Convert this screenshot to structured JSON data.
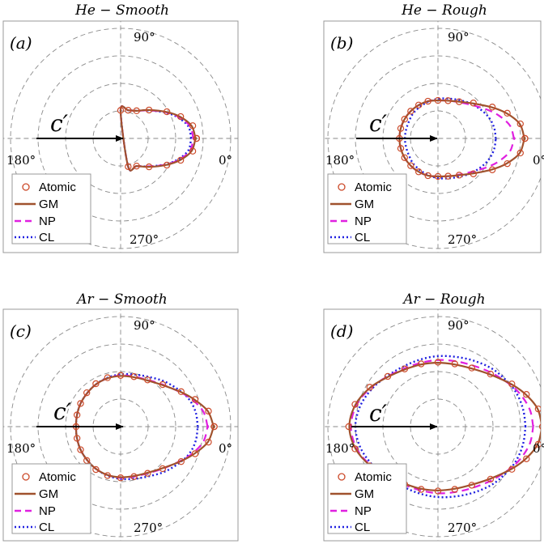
{
  "chart_data": [
    {
      "type": "polar-line",
      "title": "He − Smooth",
      "panel_label": "(a)",
      "vector_label": "c′",
      "angle_ticks": [
        "0°",
        "90°",
        "180°",
        "270°"
      ],
      "rings": [
        0.5,
        1.0,
        1.5,
        2.0
      ],
      "grid": true,
      "legend": {
        "position": "bottom-left",
        "entries": [
          "Atomic",
          "GM",
          "NP",
          "CL"
        ]
      },
      "theta_deg": [
        0,
        10,
        20,
        30,
        45,
        60,
        75,
        90
      ],
      "series": [
        {
          "name": "Atomic",
          "style": "circle-markers",
          "color": "#cc4a2a",
          "values": [
            1.38,
            1.33,
            1.16,
            0.97,
            0.73,
            0.58,
            0.53,
            0.51
          ]
        },
        {
          "name": "GM",
          "style": "solid",
          "color": "#a0522d",
          "values": [
            1.36,
            1.31,
            1.15,
            0.96,
            0.73,
            0.58,
            0.53,
            0.51
          ]
        },
        {
          "name": "NP",
          "style": "dashed",
          "color": "#e020e0",
          "values": [
            1.32,
            1.28,
            1.13,
            0.95,
            0.72,
            0.58,
            0.53,
            0.51
          ]
        },
        {
          "name": "CL",
          "style": "dotted",
          "color": "#1f1fe0",
          "values": [
            1.28,
            1.25,
            1.11,
            0.94,
            0.72,
            0.58,
            0.53,
            0.51
          ]
        }
      ]
    },
    {
      "type": "polar-line",
      "title": "He − Rough",
      "panel_label": "(b)",
      "vector_label": "c′",
      "angle_ticks": [
        "0°",
        "90°",
        "180°",
        "270°"
      ],
      "rings": [
        0.5,
        1.0,
        1.5,
        2.0
      ],
      "grid": true,
      "legend": {
        "position": "bottom-left",
        "entries": [
          "Atomic",
          "GM",
          "NP",
          "CL"
        ]
      },
      "theta_deg": [
        0,
        10,
        20,
        30,
        45,
        60,
        75,
        90,
        105,
        120,
        135,
        150,
        165,
        180
      ],
      "series": [
        {
          "name": "Atomic",
          "style": "circle-markers",
          "color": "#cc4a2a",
          "values": [
            1.58,
            1.52,
            1.34,
            1.14,
            0.91,
            0.77,
            0.71,
            0.69,
            0.7,
            0.7,
            0.7,
            0.7,
            0.7,
            0.7
          ]
        },
        {
          "name": "GM",
          "style": "solid",
          "color": "#a0522d",
          "values": [
            1.57,
            1.51,
            1.33,
            1.13,
            0.9,
            0.77,
            0.71,
            0.69,
            0.7,
            0.7,
            0.7,
            0.7,
            0.7,
            0.7
          ]
        },
        {
          "name": "NP",
          "style": "dashed",
          "color": "#e020e0",
          "values": [
            1.38,
            1.33,
            1.19,
            1.04,
            0.86,
            0.76,
            0.71,
            0.69,
            0.7,
            0.7,
            0.7,
            0.7,
            0.7,
            0.7
          ]
        },
        {
          "name": "CL",
          "style": "dotted",
          "color": "#1f1fe0",
          "values": [
            1.05,
            1.04,
            1.01,
            0.96,
            0.88,
            0.8,
            0.75,
            0.72,
            0.69,
            0.66,
            0.64,
            0.61,
            0.6,
            0.6
          ]
        }
      ]
    },
    {
      "type": "polar-line",
      "title": "Ar − Smooth",
      "panel_label": "(c)",
      "vector_label": "c′",
      "angle_ticks": [
        "0°",
        "90°",
        "180°",
        "270°"
      ],
      "rings": [
        0.5,
        1.0,
        1.5,
        2.0
      ],
      "grid": true,
      "legend": {
        "position": "bottom-left",
        "entries": [
          "Atomic",
          "GM",
          "NP",
          "CL"
        ]
      },
      "theta_deg": [
        0,
        10,
        20,
        30,
        45,
        60,
        75,
        90,
        105,
        120,
        135,
        150,
        165,
        180
      ],
      "series": [
        {
          "name": "Atomic",
          "style": "circle-markers",
          "color": "#cc4a2a",
          "values": [
            1.7,
            1.62,
            1.44,
            1.27,
            1.08,
            0.98,
            0.94,
            0.93,
            0.92,
            0.9,
            0.87,
            0.84,
            0.82,
            0.81
          ]
        },
        {
          "name": "GM",
          "style": "solid",
          "color": "#a0522d",
          "values": [
            1.69,
            1.61,
            1.43,
            1.26,
            1.07,
            0.97,
            0.93,
            0.92,
            0.91,
            0.89,
            0.86,
            0.84,
            0.82,
            0.81
          ]
        },
        {
          "name": "NP",
          "style": "dashed",
          "color": "#e020e0",
          "values": [
            1.58,
            1.53,
            1.4,
            1.25,
            1.08,
            0.98,
            0.94,
            0.93,
            0.91,
            0.89,
            0.86,
            0.84,
            0.82,
            0.81
          ]
        },
        {
          "name": "CL",
          "style": "dotted",
          "color": "#1f1fe0",
          "values": [
            1.4,
            1.39,
            1.35,
            1.27,
            1.15,
            1.04,
            0.98,
            0.95,
            0.92,
            0.89,
            0.86,
            0.84,
            0.82,
            0.81
          ]
        }
      ]
    },
    {
      "type": "polar-line",
      "title": "Ar − Rough",
      "panel_label": "(d)",
      "vector_label": "c′",
      "angle_ticks": [
        "0°",
        "90°",
        "180°",
        "270°"
      ],
      "rings": [
        0.5,
        1.0,
        1.5,
        2.0
      ],
      "grid": true,
      "legend": {
        "position": "bottom-left",
        "entries": [
          "Atomic",
          "GM",
          "NP",
          "CL"
        ]
      },
      "theta_deg": [
        0,
        10,
        20,
        30,
        45,
        60,
        75,
        90,
        105,
        120,
        135,
        150,
        165,
        180
      ],
      "series": [
        {
          "name": "Atomic",
          "style": "circle-markers",
          "color": "#cc4a2a",
          "values": [
            1.9,
            1.85,
            1.71,
            1.55,
            1.35,
            1.23,
            1.18,
            1.17,
            1.18,
            1.21,
            1.29,
            1.43,
            1.56,
            1.62
          ]
        },
        {
          "name": "GM",
          "style": "solid",
          "color": "#a0522d",
          "values": [
            1.89,
            1.84,
            1.7,
            1.54,
            1.34,
            1.22,
            1.17,
            1.16,
            1.17,
            1.2,
            1.28,
            1.42,
            1.55,
            1.61
          ]
        },
        {
          "name": "NP",
          "style": "dashed",
          "color": "#e020e0",
          "values": [
            1.73,
            1.7,
            1.62,
            1.52,
            1.38,
            1.28,
            1.23,
            1.21,
            1.2,
            1.22,
            1.29,
            1.41,
            1.53,
            1.58
          ]
        },
        {
          "name": "CL",
          "style": "dotted",
          "color": "#1f1fe0",
          "values": [
            1.59,
            1.58,
            1.56,
            1.52,
            1.45,
            1.37,
            1.31,
            1.28,
            1.26,
            1.26,
            1.3,
            1.38,
            1.46,
            1.5
          ]
        }
      ]
    }
  ]
}
